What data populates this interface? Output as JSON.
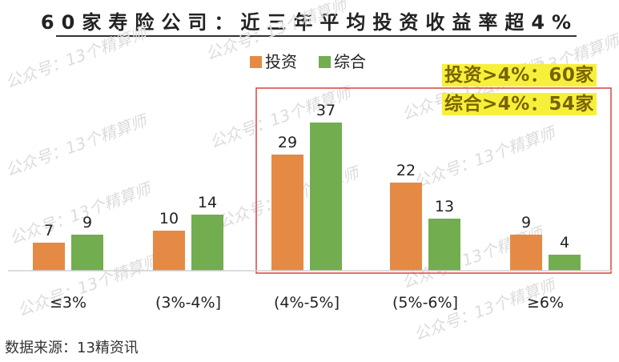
{
  "title": "60家寿险公司：近三年平均投资收益率超4%",
  "source": "数据来源：13精资讯",
  "annotations": [
    "投资>4%：60家",
    "综合>4%：54家"
  ],
  "watermark": "公众号：13个精算师",
  "colors": {
    "invest": "#e58a45",
    "total": "#72ad4f",
    "highlight_box": "#d9423e",
    "note_bg": "#f7f03a"
  },
  "chart_data": {
    "type": "bar",
    "categories": [
      "≤3%",
      "(3%-4%]",
      "(4%-5%]",
      "(5%-6%]",
      "≥6%"
    ],
    "series": [
      {
        "name": "投资",
        "values": [
          7,
          10,
          29,
          22,
          9
        ]
      },
      {
        "name": "综合",
        "values": [
          9,
          14,
          37,
          13,
          4
        ]
      }
    ],
    "legend": "top-center",
    "highlight_categories": [
      "(4%-5%]",
      "(5%-6%]",
      "≥6%"
    ],
    "grid": false
  }
}
